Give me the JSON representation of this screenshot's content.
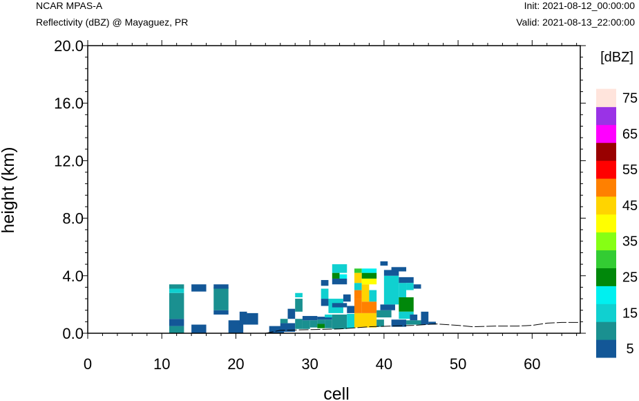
{
  "header": {
    "model": "NCAR MPAS-A",
    "field": "Reflectivity (dBZ) @ Mayaguez, PR",
    "init": "Init: 2021-08-12_00:00:00",
    "valid": "Valid: 2021-08-13_22:00:00"
  },
  "chart_data": {
    "type": "heatmap",
    "xlabel": "cell",
    "ylabel": "height (km)",
    "xlim": [
      0,
      66.5
    ],
    "ylim": [
      0,
      20
    ],
    "x_ticks": [
      0,
      10,
      20,
      30,
      40,
      50,
      60
    ],
    "x_tick_labels": [
      "0",
      "10",
      "20",
      "30",
      "40",
      "50",
      "60"
    ],
    "y_ticks": [
      0,
      4,
      8,
      12,
      16,
      20
    ],
    "y_tick_labels": [
      "0.0",
      "4.0",
      "8.0",
      "12.0",
      "16.0",
      "20.0"
    ],
    "grid": false,
    "colorbar": {
      "units": "[dBZ]",
      "levels": [
        5,
        10,
        15,
        20,
        25,
        30,
        35,
        40,
        45,
        50,
        55,
        60,
        65,
        70,
        75
      ],
      "labels": [
        "5",
        "15",
        "25",
        "35",
        "45",
        "55",
        "65",
        "75"
      ],
      "colors": [
        "#135797",
        "#1a9090",
        "#10d0d0",
        "#00f0f0",
        "#00880a",
        "#33cc33",
        "#86ff14",
        "#ffff00",
        "#ffd400",
        "#ff8000",
        "#ff0000",
        "#990000",
        "#ff00ff",
        "#9a33e6",
        "#ffe4dc"
      ]
    },
    "terrain": [
      [
        0,
        0
      ],
      [
        24,
        0
      ],
      [
        26,
        0.2
      ],
      [
        30,
        0.25
      ],
      [
        34,
        0.3
      ],
      [
        38,
        0.45
      ],
      [
        44,
        0.55
      ],
      [
        47,
        0.65
      ],
      [
        50,
        0.55
      ],
      [
        52,
        0.45
      ],
      [
        55,
        0.5
      ],
      [
        58,
        0.5
      ],
      [
        60,
        0.55
      ],
      [
        62,
        0.7
      ],
      [
        64,
        0.75
      ],
      [
        66.5,
        0.75
      ]
    ],
    "cells": [
      [
        11,
        0,
        2,
        0.5,
        10
      ],
      [
        11,
        0.5,
        2,
        0.5,
        5
      ],
      [
        11,
        1.0,
        2,
        1.8,
        10
      ],
      [
        11,
        2.8,
        2,
        0.3,
        15
      ],
      [
        11,
        3.1,
        2,
        0.3,
        10
      ],
      [
        14,
        0,
        2,
        0.6,
        5
      ],
      [
        14,
        2.9,
        2,
        0.5,
        5
      ],
      [
        17,
        1.3,
        2,
        0.3,
        5
      ],
      [
        17,
        1.6,
        2,
        1.6,
        10
      ],
      [
        17,
        3.1,
        2,
        0.3,
        5
      ],
      [
        19,
        0,
        2,
        0.9,
        5
      ],
      [
        20.5,
        0.6,
        1,
        0.9,
        5
      ],
      [
        21.5,
        0.6,
        1.5,
        0.8,
        5
      ],
      [
        24.5,
        0,
        2,
        0.5,
        5
      ],
      [
        26,
        0.1,
        2,
        0.6,
        5
      ],
      [
        26,
        0.7,
        1,
        0.3,
        10
      ],
      [
        27,
        1.0,
        1,
        0.7,
        5
      ],
      [
        28,
        0.3,
        1,
        0.7,
        10
      ],
      [
        28,
        1.5,
        1,
        0.9,
        10
      ],
      [
        28,
        2.5,
        1,
        0.3,
        15
      ],
      [
        29,
        0.3,
        1,
        0.6,
        10
      ],
      [
        29,
        0.9,
        2,
        0.3,
        5
      ],
      [
        30,
        0.4,
        1,
        0.5,
        10
      ],
      [
        31,
        0.35,
        1,
        0.3,
        25
      ],
      [
        31,
        0.65,
        1,
        0.3,
        10
      ],
      [
        31,
        0.95,
        2,
        0.2,
        5
      ],
      [
        32,
        0.35,
        1,
        0.6,
        10
      ],
      [
        32,
        1.1,
        1,
        0.2,
        15
      ],
      [
        31.5,
        1.9,
        1,
        0.5,
        5
      ],
      [
        31.5,
        2.4,
        1,
        0.7,
        15
      ],
      [
        31.5,
        3.3,
        1,
        0.4,
        5
      ],
      [
        32.5,
        1.4,
        2,
        1.0,
        15
      ],
      [
        33,
        0.3,
        2,
        1.0,
        10
      ],
      [
        33,
        1.8,
        2,
        0.3,
        5
      ],
      [
        33,
        3.4,
        2,
        0.4,
        5
      ],
      [
        33,
        3.8,
        1,
        0.4,
        25
      ],
      [
        34,
        3.8,
        1,
        0.3,
        20
      ],
      [
        33,
        4.2,
        2,
        0.6,
        15
      ],
      [
        34.5,
        2.2,
        1,
        0.5,
        5
      ],
      [
        35,
        0.35,
        1,
        1.0,
        15
      ],
      [
        35,
        1.4,
        1,
        0.5,
        5
      ],
      [
        36,
        0.4,
        3,
        1.0,
        45
      ],
      [
        36,
        1.4,
        1,
        1.0,
        50
      ],
      [
        36,
        2.4,
        1,
        0.6,
        50
      ],
      [
        36,
        3.0,
        1,
        0.5,
        15
      ],
      [
        36,
        3.5,
        1,
        0.7,
        45
      ],
      [
        36,
        4.2,
        1,
        0.3,
        30
      ],
      [
        37,
        1.4,
        2,
        0.8,
        50
      ],
      [
        37,
        2.2,
        1,
        1.2,
        45
      ],
      [
        38,
        2.2,
        1,
        0.8,
        15
      ],
      [
        37,
        3.4,
        2,
        0.4,
        40
      ],
      [
        37,
        3.8,
        2,
        0.4,
        25
      ],
      [
        37,
        4.2,
        2,
        0.3,
        20
      ],
      [
        39,
        0.45,
        1,
        0.5,
        10
      ],
      [
        39,
        1.1,
        2,
        0.5,
        10
      ],
      [
        39.5,
        1.6,
        2,
        0.4,
        5
      ],
      [
        40,
        2.0,
        2,
        2.0,
        15
      ],
      [
        40,
        4.0,
        2,
        0.4,
        5
      ],
      [
        39.5,
        4.7,
        1,
        0.3,
        5
      ],
      [
        41,
        4.3,
        2,
        0.3,
        5
      ],
      [
        41,
        0.45,
        2,
        0.5,
        5
      ],
      [
        42,
        1.5,
        2,
        1.0,
        25
      ],
      [
        42,
        1.0,
        2,
        0.5,
        15
      ],
      [
        42,
        2.5,
        1,
        1.0,
        15
      ],
      [
        42,
        3.5,
        2,
        0.4,
        5
      ],
      [
        43,
        3.0,
        1,
        0.5,
        15
      ],
      [
        44,
        3.1,
        1,
        0.3,
        5
      ],
      [
        43,
        0.6,
        2,
        0.3,
        10
      ],
      [
        43.5,
        0.9,
        1,
        0.4,
        5
      ],
      [
        45,
        0.6,
        1,
        0.9,
        5
      ],
      [
        46,
        0.6,
        1,
        0.2,
        5
      ]
    ]
  }
}
